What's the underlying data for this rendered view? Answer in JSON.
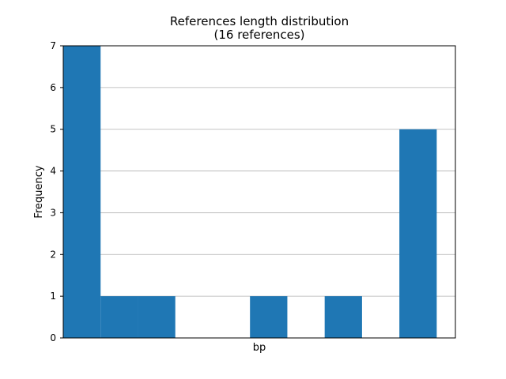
{
  "chart_data": {
    "type": "bar",
    "title": "References length distribution",
    "subtitle": "(16 references)",
    "xlabel": "bp",
    "ylabel": "Frequency",
    "xlim": [
      0,
      10.5
    ],
    "ylim": [
      0,
      7
    ],
    "yticks": [
      "0",
      "1",
      "2",
      "3",
      "4",
      "5",
      "6",
      "7"
    ],
    "grid": "horizontal",
    "bar_color": "#1f77b4",
    "bins": [
      {
        "start": 0,
        "end": 1,
        "value": 7
      },
      {
        "start": 1,
        "end": 2,
        "value": 1
      },
      {
        "start": 2,
        "end": 3,
        "value": 1
      },
      {
        "start": 3,
        "end": 4,
        "value": 0
      },
      {
        "start": 4,
        "end": 5,
        "value": 0
      },
      {
        "start": 5,
        "end": 6,
        "value": 1
      },
      {
        "start": 6,
        "end": 7,
        "value": 0
      },
      {
        "start": 7,
        "end": 8,
        "value": 1
      },
      {
        "start": 8,
        "end": 9,
        "value": 0
      },
      {
        "start": 9,
        "end": 10,
        "value": 5
      }
    ]
  }
}
